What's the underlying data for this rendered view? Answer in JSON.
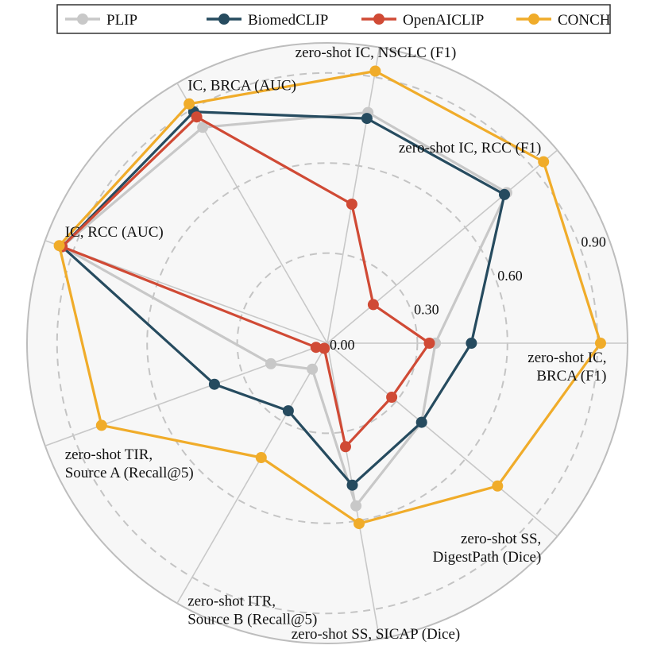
{
  "chart_data": {
    "type": "radar",
    "axes": [
      "zero-shot IC,\nBRCA (F1)",
      "zero-shot IC, RCC (F1)",
      "zero-shot IC, NSCLC (F1)",
      "IC, BRCA (AUC)",
      "IC, RCC (AUC)",
      "zero-shot TIR,\nSource A (Recall@5)",
      "zero-shot ITR,\nSource B (Recall@5)",
      "zero-shot SS, SICAP (Dice)",
      "zero-shot SS,\nDigestPath (Dice)"
    ],
    "radial_ticks": [
      "0.00",
      "0.30",
      "0.60",
      "0.90"
    ],
    "radial_tick_values": [
      0.0,
      0.3,
      0.6,
      0.9
    ],
    "rmax": 1.0,
    "grid": true,
    "legend_position": "top",
    "series": [
      {
        "name": "PLIP",
        "color": "#c8c8c8",
        "values": [
          0.36,
          0.78,
          0.78,
          0.83,
          0.94,
          0.2,
          0.1,
          0.55,
          0.41
        ]
      },
      {
        "name": "BiomedCLIP",
        "color": "#264b5f",
        "values": [
          0.48,
          0.77,
          0.76,
          0.89,
          0.94,
          0.4,
          0.26,
          0.48,
          0.41
        ]
      },
      {
        "name": "OpenAICLIP",
        "color": "#d04a35",
        "values": [
          0.34,
          0.2,
          0.47,
          0.87,
          0.94,
          0.04,
          0.02,
          0.35,
          0.28
        ]
      },
      {
        "name": "CONCH",
        "color": "#f0ac2a",
        "values": [
          0.91,
          0.94,
          0.92,
          0.92,
          0.95,
          0.8,
          0.44,
          0.61,
          0.74
        ]
      }
    ]
  }
}
